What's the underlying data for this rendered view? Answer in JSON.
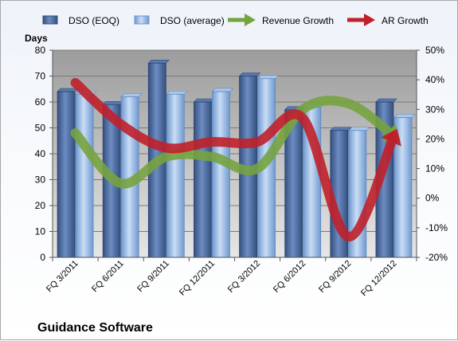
{
  "chart_data": {
    "type": "bar",
    "ylabel": "Days",
    "footer": "Guidance Software",
    "categories": [
      "FQ 3/2011",
      "FQ 6/2011",
      "FQ 9/2011",
      "FQ 12/2011",
      "FQ 3/2012",
      "FQ 6/2012",
      "FQ 9/2012",
      "FQ 12/2012"
    ],
    "ylim": [
      0,
      80
    ],
    "y_ticks": [
      "0",
      "10",
      "20",
      "30",
      "40",
      "50",
      "60",
      "70",
      "80"
    ],
    "y2lim": [
      -0.2,
      0.5
    ],
    "y2_ticks": [
      "-20%",
      "-10%",
      "0%",
      "10%",
      "20%",
      "30%",
      "40%",
      "50%"
    ],
    "grid": true,
    "legend_position": "top",
    "series": [
      {
        "name": "DSO (EOQ)",
        "kind": "bar",
        "axis": "left",
        "color": "#4f6fa6",
        "values": [
          64,
          59,
          75,
          60,
          70,
          57,
          49,
          60
        ]
      },
      {
        "name": "DSO (average)",
        "kind": "bar",
        "axis": "left",
        "color": "#8fb4e3",
        "values": [
          63,
          62,
          63,
          64,
          69,
          58,
          49,
          54
        ]
      },
      {
        "name": "Revenue Growth",
        "kind": "arrow-line",
        "axis": "right",
        "color": "#77a33f",
        "values": [
          0.22,
          0.05,
          0.14,
          0.14,
          0.1,
          0.3,
          0.32,
          0.21
        ]
      },
      {
        "name": "AR Growth",
        "kind": "arrow-line",
        "axis": "right",
        "color": "#c0202a",
        "values": [
          0.39,
          0.25,
          0.17,
          0.19,
          0.19,
          0.27,
          -0.13,
          0.21
        ]
      }
    ]
  }
}
